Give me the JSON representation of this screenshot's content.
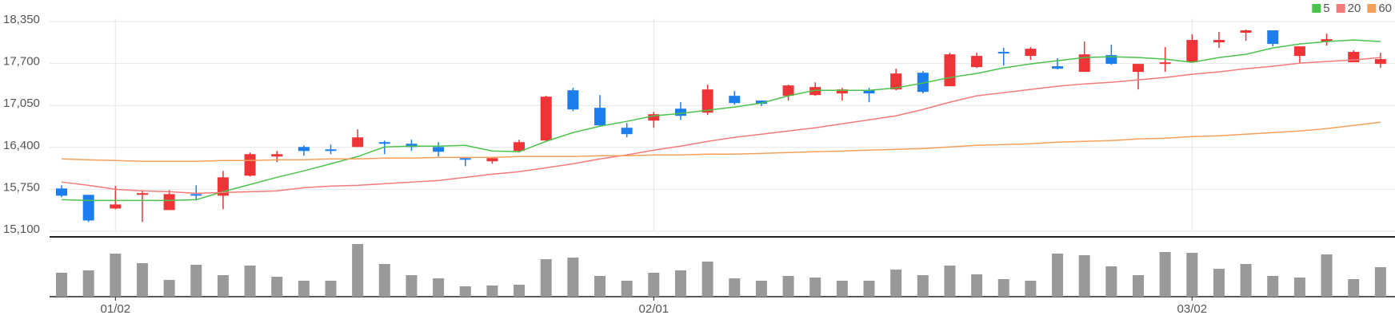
{
  "chart_data": {
    "type": "candlestick",
    "categories": [
      null,
      null,
      "01/02",
      null,
      null,
      null,
      null,
      null,
      null,
      null,
      null,
      null,
      null,
      null,
      null,
      null,
      null,
      null,
      null,
      null,
      null,
      null,
      "02/01",
      null,
      null,
      null,
      null,
      null,
      null,
      null,
      null,
      null,
      null,
      null,
      null,
      null,
      null,
      null,
      null,
      null,
      null,
      null,
      "03/02",
      null,
      null,
      null,
      null,
      null,
      null,
      null
    ],
    "open": [
      15763,
      15664,
      15453,
      15664,
      15428,
      15676,
      15651,
      15961,
      16258,
      16406,
      16369,
      16406,
      16481,
      16456,
      16406,
      16233,
      16184,
      16345,
      16506,
      17285,
      17013,
      16704,
      16815,
      17000,
      16939,
      17199,
      17125,
      17199,
      17211,
      17236,
      17285,
      17298,
      17557,
      17347,
      17644,
      17880,
      17818,
      17657,
      17570,
      17830,
      17570,
      17706,
      17719,
      18028,
      18177,
      18214,
      17818,
      18040,
      17719,
      17694
    ],
    "high": [
      15812,
      15664,
      15800,
      15738,
      15738,
      15812,
      16035,
      16320,
      16345,
      16431,
      16443,
      16679,
      16505,
      16518,
      16481,
      16245,
      16245,
      16518,
      17199,
      17322,
      17211,
      16778,
      16951,
      17100,
      17372,
      17273,
      17125,
      17372,
      17409,
      17322,
      17322,
      17620,
      17582,
      17867,
      17867,
      17941,
      17954,
      17781,
      18040,
      17991,
      17694,
      17954,
      18152,
      18189,
      18226,
      18214,
      17966,
      18164,
      17904,
      17867
    ],
    "low": [
      15626,
      15243,
      15441,
      15243,
      15428,
      15577,
      15441,
      15948,
      16171,
      16270,
      16295,
      16406,
      16295,
      16344,
      16258,
      16109,
      16146,
      16320,
      16506,
      16963,
      16728,
      16555,
      16704,
      16827,
      16902,
      17062,
      17038,
      17125,
      17199,
      17125,
      17100,
      17285,
      17236,
      17347,
      17632,
      17669,
      17756,
      17607,
      17570,
      17681,
      17298,
      17570,
      17719,
      17941,
      18053,
      17966,
      17706,
      17979,
      17719,
      17632
    ],
    "close": [
      15651,
      15267,
      15515,
      15690,
      15676,
      15664,
      15936,
      16295,
      16295,
      16344,
      16357,
      16555,
      16456,
      16406,
      16332,
      16220,
      16233,
      16481,
      17186,
      16988,
      16741,
      16605,
      16914,
      16889,
      17298,
      17087,
      17075,
      17360,
      17335,
      17298,
      17236,
      17545,
      17260,
      17842,
      17818,
      17867,
      17929,
      17620,
      17842,
      17694,
      17694,
      17718,
      18065,
      18065,
      18214,
      18003,
      17966,
      18077,
      17880,
      17768
    ],
    "up_color": "#ee3437",
    "down_color": "#1c7ded",
    "ylim": [
      15050,
      18400
    ],
    "yticks": [
      {
        "value": 15100,
        "label": "15,100"
      },
      {
        "value": 15750,
        "label": "15,750"
      },
      {
        "value": 16400,
        "label": "16,400"
      },
      {
        "value": 17050,
        "label": "17,050"
      },
      {
        "value": 17700,
        "label": "17,700"
      },
      {
        "value": 18350,
        "label": "18,350"
      }
    ],
    "grid": true,
    "legend": "top-right",
    "series": [
      {
        "name": "5",
        "color": "#4cc24c",
        "values": [
          15589,
          15577,
          15577,
          15577,
          15577,
          15589,
          15713,
          15824,
          15936,
          16035,
          16146,
          16258,
          16406,
          16419,
          16419,
          16431,
          16344,
          16332,
          16493,
          16629,
          16728,
          16803,
          16889,
          16926,
          16976,
          17025,
          17087,
          17199,
          17285,
          17285,
          17285,
          17322,
          17397,
          17483,
          17545,
          17632,
          17694,
          17743,
          17793,
          17805,
          17793,
          17768,
          17719,
          17793,
          17842,
          17941,
          18003,
          18040,
          18065,
          18040
        ]
      },
      {
        "name": "20",
        "color": "#f27a7a",
        "values": [
          15862,
          15812,
          15750,
          15725,
          15713,
          15688,
          15701,
          15713,
          15725,
          15775,
          15800,
          15812,
          15837,
          15862,
          15886,
          15936,
          15985,
          16023,
          16084,
          16146,
          16221,
          16283,
          16357,
          16419,
          16493,
          16555,
          16604,
          16654,
          16703,
          16765,
          16827,
          16889,
          16988,
          17100,
          17199,
          17248,
          17298,
          17347,
          17384,
          17409,
          17446,
          17483,
          17533,
          17570,
          17620,
          17657,
          17706,
          17731,
          17756,
          17793
        ]
      },
      {
        "name": "60",
        "color": "#f5a05a",
        "values": [
          16221,
          16208,
          16196,
          16184,
          16184,
          16184,
          16196,
          16196,
          16208,
          16208,
          16221,
          16221,
          16233,
          16233,
          16245,
          16245,
          16245,
          16258,
          16258,
          16258,
          16270,
          16270,
          16283,
          16283,
          16295,
          16295,
          16307,
          16320,
          16332,
          16344,
          16357,
          16369,
          16382,
          16406,
          16431,
          16443,
          16456,
          16481,
          16493,
          16505,
          16530,
          16543,
          16567,
          16580,
          16604,
          16629,
          16654,
          16691,
          16741,
          16790
        ]
      }
    ],
    "volume": {
      "color": "#999999",
      "ylim": [
        0,
        72
      ],
      "values": [
        30,
        33,
        54,
        42,
        21,
        40,
        27,
        39,
        25,
        20,
        20,
        66,
        41,
        27,
        23,
        13,
        14,
        15,
        47,
        49,
        26,
        20,
        30,
        33,
        44,
        23,
        20,
        26,
        24,
        20,
        20,
        34,
        27,
        39,
        28,
        22,
        20,
        54,
        52,
        38,
        27,
        56,
        55,
        35,
        41,
        26,
        24,
        53,
        22,
        37
      ]
    }
  }
}
